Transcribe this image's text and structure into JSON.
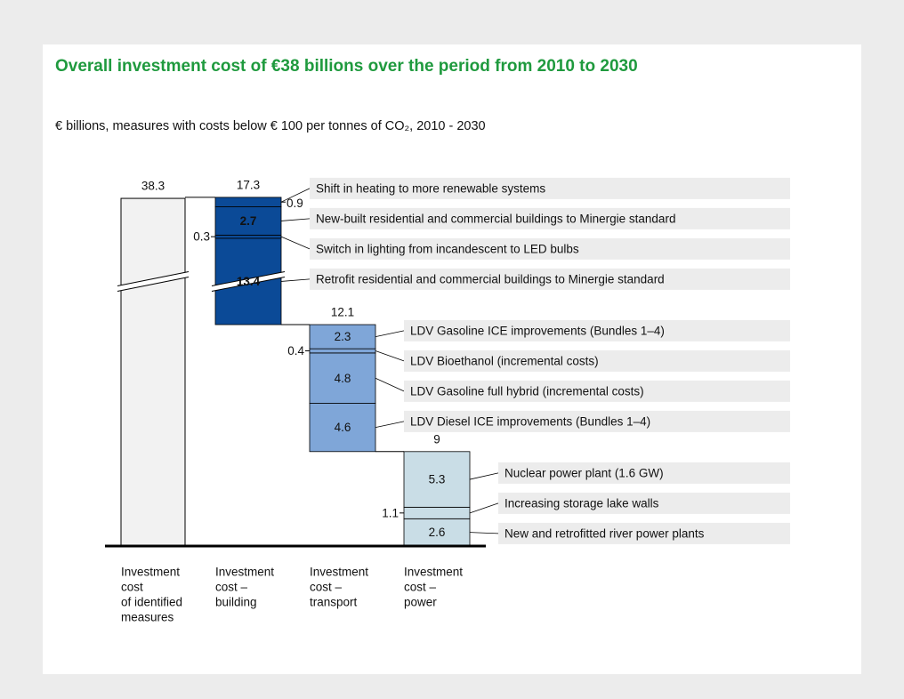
{
  "chart_data": {
    "type": "waterfall",
    "title": "Overall investment cost of €38 billions over the period from 2010 to 2030",
    "subtitle": "€ billions, measures with costs below € 100 per tonnes of CO₂, 2010 - 2030",
    "total": {
      "category": [
        "Investment",
        "cost",
        "of identified",
        "measures"
      ],
      "value": 38.3,
      "color": "#f2f2f2",
      "break": true
    },
    "columns": [
      {
        "category": [
          "Investment",
          "cost –",
          "building"
        ],
        "total": 17.3,
        "color": "#0b4a97",
        "label_color": "#ffffff",
        "label_bold": true,
        "segments": [
          {
            "name": "Shift in heating to more renewable systems",
            "value": 0.9
          },
          {
            "name": "New-built residential and commercial buildings to Minergie standard",
            "value": 2.7
          },
          {
            "name": "Switch in lighting from incandescent to LED bulbs",
            "value": 0.3
          },
          {
            "name": "Retrofit residential and commercial buildings to Minergie standard",
            "value": 13.4,
            "break": true
          }
        ]
      },
      {
        "category": [
          "Investment",
          "cost –",
          "transport"
        ],
        "total": 12.1,
        "color": "#7fa6d8",
        "label_color": "#1a1a1a",
        "label_bold": false,
        "segments": [
          {
            "name": "LDV Gasoline ICE improvements (Bundles 1–4)",
            "value": 2.3
          },
          {
            "name": "LDV Bioethanol (incremental costs)",
            "value": 0.4
          },
          {
            "name": "LDV Gasoline full hybrid (incremental costs)",
            "value": 4.8
          },
          {
            "name": "LDV Diesel ICE improvements (Bundles 1–4)",
            "value": 4.6
          }
        ]
      },
      {
        "category": [
          "Investment",
          "cost –",
          "power"
        ],
        "total": 9.0,
        "color": "#c9dde6",
        "label_color": "#1a1a1a",
        "label_bold": false,
        "segments": [
          {
            "name": "Nuclear power plant (1.6 GW)",
            "value": 5.3
          },
          {
            "name": "Increasing storage lake walls",
            "value": 1.1
          },
          {
            "name": "New and retrofitted river power plants",
            "value": 2.6
          }
        ]
      }
    ]
  }
}
